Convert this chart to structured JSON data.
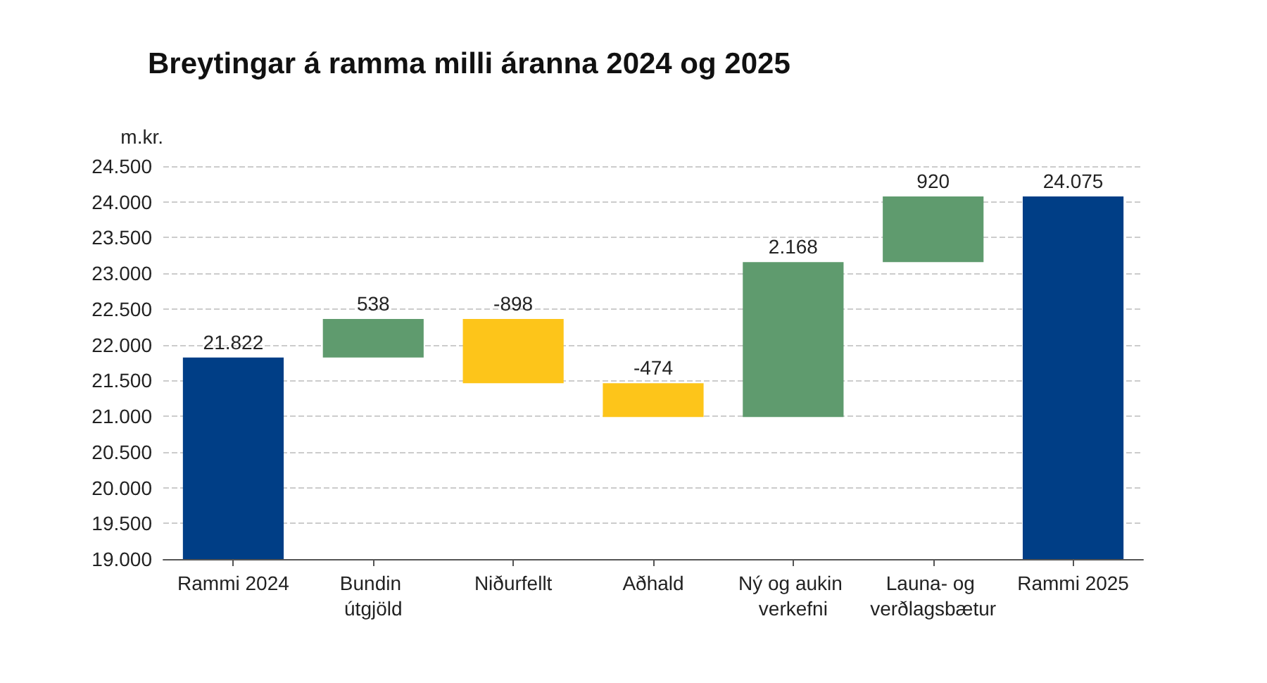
{
  "chart_data": {
    "type": "bar",
    "title": "Breytingar á ramma milli áranna 2024 og 2025",
    "ylabel": "m.kr.",
    "categories": [
      "Rammi 2024",
      "Bundin útgjöld",
      "Niðurfellt",
      "Aðhald",
      "Ný og aukin verkefni",
      "Launa- og verðlagsbætur",
      "Rammi 2025"
    ],
    "values": [
      21822,
      538,
      -898,
      -474,
      2168,
      920,
      24075
    ],
    "base": [
      null,
      21822,
      22360,
      21462,
      20988,
      23156,
      null
    ],
    "colors": [
      "#003e86",
      "#5f9b6e",
      "#fdc51a",
      "#fdc51a",
      "#5f9b6e",
      "#5f9b6e",
      "#003e86"
    ],
    "value_labels": [
      "21.822",
      "538",
      "-898",
      "-474",
      "2.168",
      "920",
      "24.075"
    ],
    "ylim": [
      19000,
      24500
    ],
    "yticks": [
      {
        "value": 19000,
        "label": "19.000"
      },
      {
        "value": 19500,
        "label": "19.500"
      },
      {
        "value": 20000,
        "label": "20.000"
      },
      {
        "value": 20500,
        "label": "20.500"
      },
      {
        "value": 21000,
        "label": "21.000"
      },
      {
        "value": 21500,
        "label": "21.500"
      },
      {
        "value": 22000,
        "label": "22.000"
      },
      {
        "value": 22500,
        "label": "22.500"
      },
      {
        "value": 23000,
        "label": "23.000"
      },
      {
        "value": 23500,
        "label": "23.500"
      },
      {
        "value": 24000,
        "label": "24.000"
      },
      {
        "value": 24500,
        "label": "24.500"
      }
    ],
    "grid": "y"
  }
}
